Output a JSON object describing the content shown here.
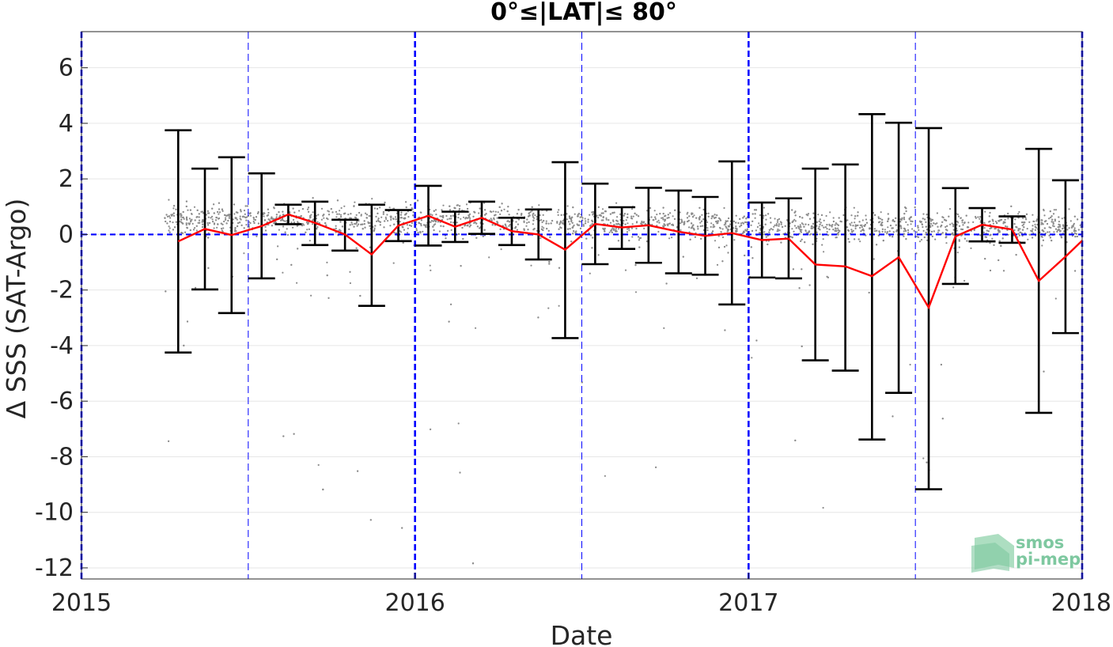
{
  "chart_data": {
    "type": "scatter",
    "title": "0°≤|LAT|≤ 80°",
    "xlabel": "Date",
    "ylabel": "Δ SSS (SAT-Argo)",
    "xlim": [
      2015.0,
      2018.0
    ],
    "ylim": [
      -12.4,
      7.3
    ],
    "x_ticks": [
      {
        "value": 2015,
        "label": "2015"
      },
      {
        "value": 2016,
        "label": "2016"
      },
      {
        "value": 2017,
        "label": "2017"
      },
      {
        "value": 2018,
        "label": "2018"
      }
    ],
    "y_ticks": [
      {
        "value": 6,
        "label": "6"
      },
      {
        "value": 4,
        "label": "4"
      },
      {
        "value": 2,
        "label": "2"
      },
      {
        "value": 0,
        "label": "0"
      },
      {
        "value": -2,
        "label": "-2"
      },
      {
        "value": -4,
        "label": "-4"
      },
      {
        "value": -6,
        "label": "-6"
      },
      {
        "value": -8,
        "label": "-8"
      },
      {
        "value": -10,
        "label": "-10"
      },
      {
        "value": -12,
        "label": "-12"
      }
    ],
    "grid": "horizontal",
    "zero_line": 0,
    "vertical_lines": [
      {
        "x": 2015.0,
        "style": "thick"
      },
      {
        "x": 2015.5,
        "style": "thin"
      },
      {
        "x": 2016.0,
        "style": "thick"
      },
      {
        "x": 2016.5,
        "style": "thin"
      },
      {
        "x": 2017.0,
        "style": "thick"
      },
      {
        "x": 2017.5,
        "style": "thin"
      },
      {
        "x": 2018.0,
        "style": "thick"
      }
    ],
    "series": [
      {
        "kind": "monthly-mean-with-errorbars",
        "color": "#ff0000",
        "errorbar_color": "#000000",
        "points": [
          {
            "x": 2015.29,
            "mean": -0.25,
            "low": -4.25,
            "high": 3.75
          },
          {
            "x": 2015.37,
            "mean": 0.2,
            "low": -1.98,
            "high": 2.37
          },
          {
            "x": 2015.45,
            "mean": -0.02,
            "low": -2.83,
            "high": 2.78
          },
          {
            "x": 2015.54,
            "mean": 0.3,
            "low": -1.58,
            "high": 2.2
          },
          {
            "x": 2015.62,
            "mean": 0.72,
            "low": 0.37,
            "high": 1.07
          },
          {
            "x": 2015.7,
            "mean": 0.42,
            "low": -0.38,
            "high": 1.18
          },
          {
            "x": 2015.79,
            "mean": 0.0,
            "low": -0.58,
            "high": 0.53
          },
          {
            "x": 2015.87,
            "mean": -0.72,
            "low": -2.57,
            "high": 1.07
          },
          {
            "x": 2015.95,
            "mean": 0.32,
            "low": -0.24,
            "high": 0.88
          },
          {
            "x": 2016.04,
            "mean": 0.67,
            "low": -0.4,
            "high": 1.75
          },
          {
            "x": 2016.12,
            "mean": 0.28,
            "low": -0.27,
            "high": 0.82
          },
          {
            "x": 2016.2,
            "mean": 0.6,
            "low": 0.02,
            "high": 1.18
          },
          {
            "x": 2016.29,
            "mean": 0.12,
            "low": -0.38,
            "high": 0.6
          },
          {
            "x": 2016.37,
            "mean": 0.0,
            "low": -0.9,
            "high": 0.9
          },
          {
            "x": 2016.45,
            "mean": -0.55,
            "low": -3.73,
            "high": 2.6
          },
          {
            "x": 2016.54,
            "mean": 0.38,
            "low": -1.07,
            "high": 1.83
          },
          {
            "x": 2016.62,
            "mean": 0.25,
            "low": -0.52,
            "high": 0.98
          },
          {
            "x": 2016.7,
            "mean": 0.33,
            "low": -1.02,
            "high": 1.68
          },
          {
            "x": 2016.79,
            "mean": 0.1,
            "low": -1.4,
            "high": 1.58
          },
          {
            "x": 2016.87,
            "mean": -0.05,
            "low": -1.45,
            "high": 1.35
          },
          {
            "x": 2016.95,
            "mean": 0.05,
            "low": -2.52,
            "high": 2.63
          },
          {
            "x": 2017.04,
            "mean": -0.2,
            "low": -1.55,
            "high": 1.15
          },
          {
            "x": 2017.12,
            "mean": -0.15,
            "low": -1.58,
            "high": 1.3
          },
          {
            "x": 2017.2,
            "mean": -1.08,
            "low": -4.53,
            "high": 2.37
          },
          {
            "x": 2017.29,
            "mean": -1.15,
            "low": -4.9,
            "high": 2.52
          },
          {
            "x": 2017.37,
            "mean": -1.5,
            "low": -7.38,
            "high": 4.33
          },
          {
            "x": 2017.45,
            "mean": -0.82,
            "low": -5.7,
            "high": 4.02
          },
          {
            "x": 2017.54,
            "mean": -2.63,
            "low": -9.17,
            "high": 3.83
          },
          {
            "x": 2017.62,
            "mean": -0.07,
            "low": -1.78,
            "high": 1.67
          },
          {
            "x": 2017.7,
            "mean": 0.35,
            "low": -0.25,
            "high": 0.95
          },
          {
            "x": 2017.79,
            "mean": 0.18,
            "low": -0.3,
            "high": 0.65
          },
          {
            "x": 2017.87,
            "mean": -1.67,
            "low": -6.42,
            "high": 3.08
          },
          {
            "x": 2017.95,
            "mean": -0.8,
            "low": -3.55,
            "high": 1.95
          },
          {
            "x": 2018.0,
            "mean": -0.22,
            "low": null,
            "high": null
          }
        ]
      },
      {
        "kind": "individual-differences",
        "color": "#8c8c8c",
        "description_of_distribution": "dense gray scatter centered near +0.5 with spread ~1, plus sparse outliers down to -12"
      }
    ]
  },
  "logo": {
    "line1": "smos",
    "line2": "pi-mep"
  },
  "colors": {
    "mean_line": "#ff0000",
    "errorbar": "#000000",
    "zero_line": "#0000ff",
    "period_line": "#0000ff",
    "scatter": "#8c8c8c",
    "logo": "#7ec8a0"
  }
}
